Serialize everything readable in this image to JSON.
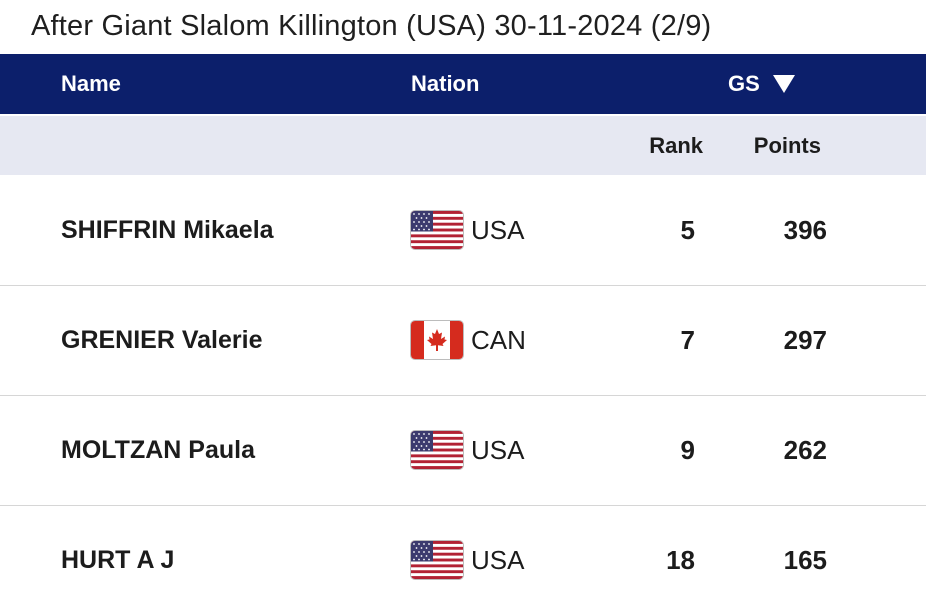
{
  "title": "After Giant Slalom Killington (USA) 30-11-2024 (2/9)",
  "header": {
    "name_label": "Name",
    "nation_label": "Nation",
    "discipline_label": "GS",
    "sort_icon": "triangle-down-icon"
  },
  "subheader": {
    "rank_label": "Rank",
    "points_label": "Points"
  },
  "colors": {
    "header_bg": "#0c1f6b",
    "subheader_bg": "#e6e8f2"
  },
  "rows": [
    {
      "name": "SHIFFRIN Mikaela",
      "nation": "USA",
      "flag": "usa-flag-icon",
      "rank": "5",
      "points": "396"
    },
    {
      "name": "GRENIER Valerie",
      "nation": "CAN",
      "flag": "canada-flag-icon",
      "rank": "7",
      "points": "297"
    },
    {
      "name": "MOLTZAN Paula",
      "nation": "USA",
      "flag": "usa-flag-icon",
      "rank": "9",
      "points": "262"
    },
    {
      "name": "HURT A J",
      "nation": "USA",
      "flag": "usa-flag-icon",
      "rank": "18",
      "points": "165"
    }
  ]
}
